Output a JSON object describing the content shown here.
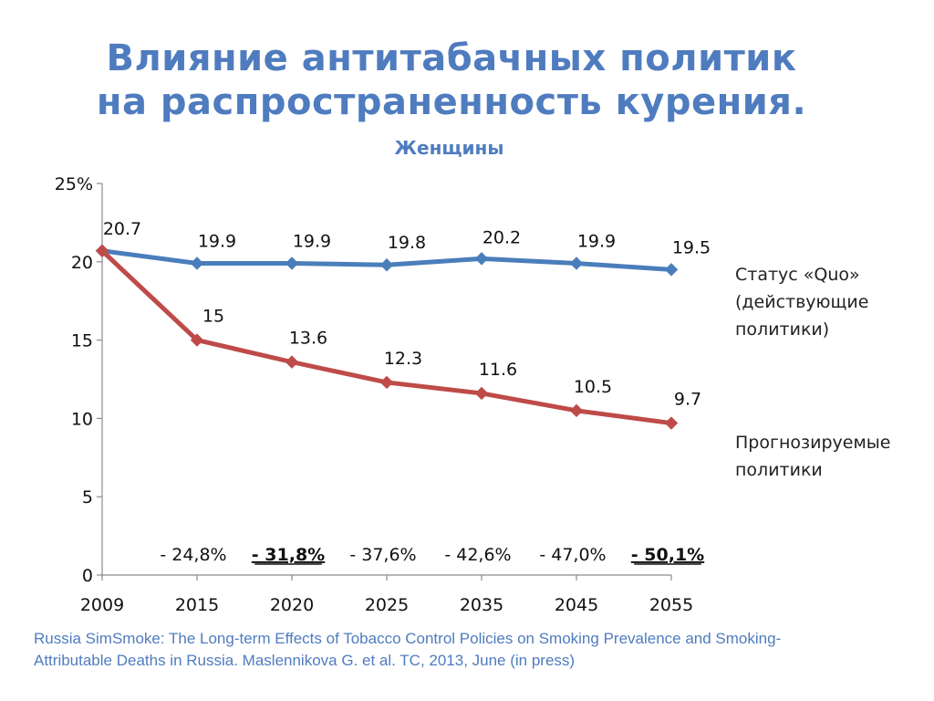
{
  "title": {
    "line1": "Влияние антитабачных политик",
    "line2": "на распространенность курения."
  },
  "chart_data": {
    "type": "line",
    "title": "Женщины",
    "categories": [
      "2009",
      "2015",
      "2020",
      "2025",
      "2035",
      "2045",
      "2055"
    ],
    "y_tick_labels": [
      "0",
      "5",
      "10",
      "15",
      "20",
      "25%"
    ],
    "ylim": [
      0,
      25
    ],
    "grid": false,
    "series": [
      {
        "name": "Статус «Quo» (действующие политики)",
        "color": "#4a7ebb",
        "values": [
          20.7,
          19.9,
          19.9,
          19.8,
          20.2,
          19.9,
          19.5
        ],
        "labels": [
          "20.7",
          "19.9",
          "19.9",
          "19.8",
          "20.2",
          "19.9",
          "19.5"
        ]
      },
      {
        "name": "Прогнозируемые политики",
        "color": "#be4b48",
        "values": [
          20.7,
          15,
          13.6,
          12.3,
          11.6,
          10.5,
          9.7
        ],
        "labels": [
          "",
          "15",
          "13.6",
          "12.3",
          "11.6",
          "10.5",
          "9.7"
        ]
      }
    ],
    "reductions": [
      {
        "text": "- 24,8%",
        "emphasis": false
      },
      {
        "text": "- 31,8%",
        "emphasis": true
      },
      {
        "text": "- 37,6%",
        "emphasis": false
      },
      {
        "text": "- 42,6%",
        "emphasis": false
      },
      {
        "text": "- 47,0%",
        "emphasis": false
      },
      {
        "text": "- 50,1%",
        "emphasis": true
      }
    ]
  },
  "legend": {
    "status_quo": [
      "Статус «Quo»",
      "(действующие",
      "политики)"
    ],
    "forecast": [
      "Прогнозируемые",
      "политики"
    ]
  },
  "source": {
    "line1": "Russia SimSmoke:  The Long-term Effects of Tobacco Control Policies on Smoking Prevalence and Smoking-",
    "line2": "Attributable Deaths in Russia.  Maslennikova  G. et al. TC, 2013, June (in press)"
  }
}
